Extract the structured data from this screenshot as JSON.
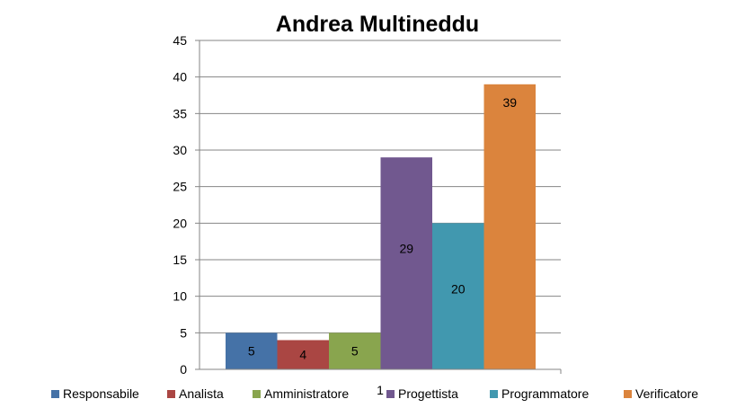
{
  "chart_data": {
    "type": "bar",
    "title": "Andrea Multineddu",
    "xlabel": "",
    "ylabel": "",
    "categories": [
      "1"
    ],
    "ylim": [
      0,
      45
    ],
    "yticks": [
      0,
      5,
      10,
      15,
      20,
      25,
      30,
      35,
      40,
      45
    ],
    "grid": true,
    "legend_position": "bottom",
    "series": [
      {
        "name": "Responsabile",
        "values": [
          5
        ],
        "color": "#4572A7"
      },
      {
        "name": "Analista",
        "values": [
          4
        ],
        "color": "#AA4643"
      },
      {
        "name": "Amministratore",
        "values": [
          5
        ],
        "color": "#89A54E"
      },
      {
        "name": "Progettista",
        "values": [
          29
        ],
        "color": "#71588F"
      },
      {
        "name": "Programmatore",
        "values": [
          20
        ],
        "color": "#4198AF"
      },
      {
        "name": "Verificatore",
        "values": [
          39
        ],
        "color": "#DB843D"
      }
    ]
  }
}
